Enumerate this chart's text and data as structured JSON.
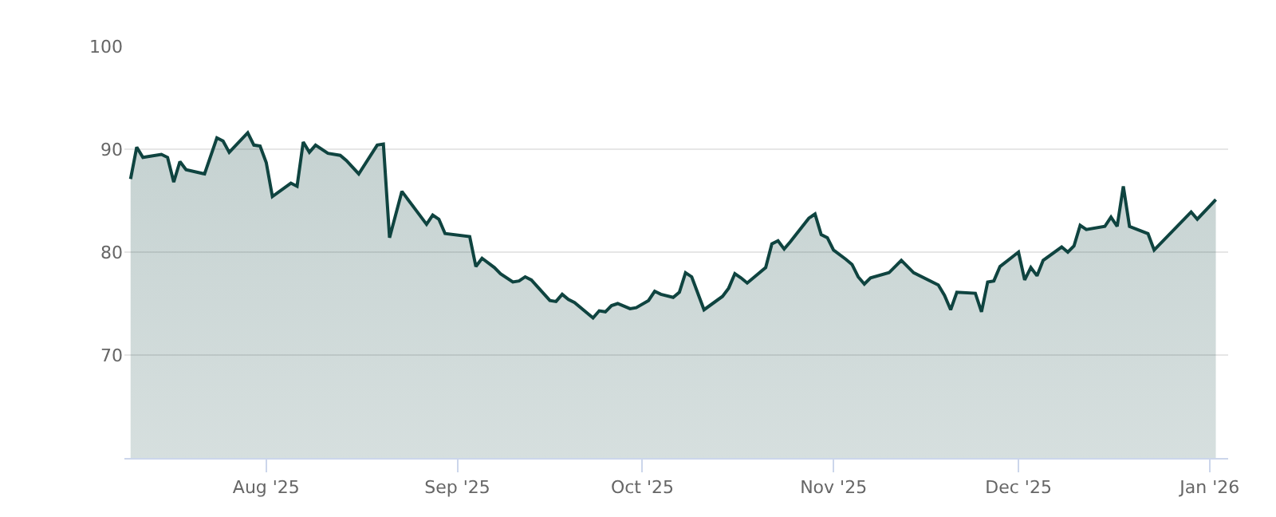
{
  "chart_data": {
    "type": "area",
    "x": [
      "2025-07-10",
      "2025-07-11",
      "2025-07-12",
      "2025-07-15",
      "2025-07-16",
      "2025-07-17",
      "2025-07-18",
      "2025-07-19",
      "2025-07-22",
      "2025-07-24",
      "2025-07-25",
      "2025-07-26",
      "2025-07-29",
      "2025-07-30",
      "2025-07-31",
      "2025-08-01",
      "2025-08-02",
      "2025-08-05",
      "2025-08-06",
      "2025-08-07",
      "2025-08-08",
      "2025-08-09",
      "2025-08-11",
      "2025-08-13",
      "2025-08-14",
      "2025-08-16",
      "2025-08-19",
      "2025-08-20",
      "2025-08-21",
      "2025-08-23",
      "2025-08-27",
      "2025-08-28",
      "2025-08-29",
      "2025-08-30",
      "2025-09-03",
      "2025-09-04",
      "2025-09-05",
      "2025-09-07",
      "2025-09-08",
      "2025-09-10",
      "2025-09-11",
      "2025-09-12",
      "2025-09-13",
      "2025-09-16",
      "2025-09-17",
      "2025-09-18",
      "2025-09-19",
      "2025-09-20",
      "2025-09-23",
      "2025-09-24",
      "2025-09-25",
      "2025-09-26",
      "2025-09-27",
      "2025-09-29",
      "2025-09-30",
      "2025-10-02",
      "2025-10-03",
      "2025-10-04",
      "2025-10-06",
      "2025-10-07",
      "2025-10-08",
      "2025-10-09",
      "2025-10-11",
      "2025-10-14",
      "2025-10-15",
      "2025-10-16",
      "2025-10-17",
      "2025-10-18",
      "2025-10-21",
      "2025-10-22",
      "2025-10-23",
      "2025-10-24",
      "2025-10-25",
      "2025-10-28",
      "2025-10-29",
      "2025-10-30",
      "2025-10-31",
      "2025-11-01",
      "2025-11-03",
      "2025-11-04",
      "2025-11-05",
      "2025-11-06",
      "2025-11-07",
      "2025-11-10",
      "2025-11-12",
      "2025-11-14",
      "2025-11-18",
      "2025-11-19",
      "2025-11-20",
      "2025-11-21",
      "2025-11-24",
      "2025-11-25",
      "2025-11-26",
      "2025-11-27",
      "2025-11-28",
      "2025-12-01",
      "2025-12-02",
      "2025-12-03",
      "2025-12-04",
      "2025-12-05",
      "2025-12-08",
      "2025-12-09",
      "2025-12-10",
      "2025-12-11",
      "2025-12-12",
      "2025-12-15",
      "2025-12-16",
      "2025-12-17",
      "2025-12-18",
      "2025-12-19",
      "2025-12-22",
      "2025-12-23",
      "2025-12-29",
      "2025-12-30",
      "2026-01-02"
    ],
    "series": [
      {
        "color": "#0f4440",
        "values": [
          87.1,
          90.2,
          89.2,
          89.5,
          89.2,
          86.8,
          88.8,
          88.0,
          87.6,
          91.1,
          90.8,
          89.7,
          91.6,
          90.4,
          90.3,
          88.7,
          85.4,
          86.7,
          86.4,
          90.7,
          89.7,
          90.4,
          89.6,
          89.4,
          88.9,
          87.6,
          90.4,
          90.5,
          81.4,
          85.9,
          82.7,
          83.6,
          83.2,
          81.8,
          81.5,
          78.6,
          79.4,
          78.5,
          77.9,
          77.1,
          77.2,
          77.6,
          77.3,
          75.3,
          75.2,
          75.9,
          75.4,
          75.1,
          73.6,
          74.3,
          74.2,
          74.8,
          75.0,
          74.5,
          74.6,
          75.3,
          76.2,
          75.9,
          75.6,
          76.1,
          78.0,
          77.6,
          74.4,
          75.7,
          76.5,
          77.9,
          77.5,
          77.0,
          78.5,
          80.8,
          81.1,
          80.3,
          81.0,
          83.3,
          83.7,
          81.7,
          81.4,
          80.2,
          79.3,
          78.8,
          77.6,
          76.9,
          77.5,
          78.0,
          79.2,
          78.0,
          76.8,
          75.8,
          74.4,
          76.1,
          76.0,
          74.2,
          77.1,
          77.2,
          78.6,
          80.0,
          77.3,
          78.5,
          77.7,
          79.2,
          80.5,
          80.0,
          80.6,
          82.6,
          82.2,
          82.5,
          83.4,
          82.5,
          86.4,
          82.5,
          81.8,
          80.2,
          83.9,
          83.2,
          85.1
        ]
      }
    ],
    "xlim": [
      "2025-07-09",
      "2026-01-04"
    ],
    "xticks": [
      {
        "value": "2025-08-01",
        "label": "Aug '25"
      },
      {
        "value": "2025-09-01",
        "label": "Sep '25"
      },
      {
        "value": "2025-10-01",
        "label": "Oct '25"
      },
      {
        "value": "2025-11-01",
        "label": "Nov '25"
      },
      {
        "value": "2025-12-01",
        "label": "Dec '25"
      },
      {
        "value": "2026-01-01",
        "label": "Jan '26"
      }
    ],
    "ylim": [
      60,
      100
    ],
    "yticks": [
      70,
      80,
      90,
      100
    ],
    "grid": "y",
    "legend": false,
    "marker": "none",
    "line_style": "solid"
  }
}
